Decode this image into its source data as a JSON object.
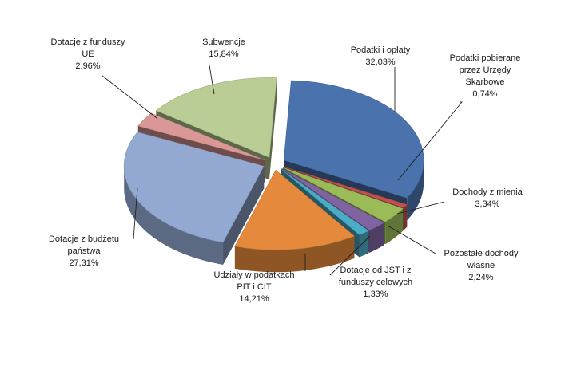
{
  "chart_data": {
    "type": "pie",
    "title": "",
    "style": "3d-exploded",
    "slices": [
      {
        "label_lines": [
          "Podatki i opłaty"
        ],
        "value_text": "32,03%",
        "value": 32.03,
        "color": "#4a72ad"
      },
      {
        "label_lines": [
          "Podatki  pobierane",
          "przez Urzędy",
          "Skarbowe"
        ],
        "value_text": "0,74%",
        "value": 0.74,
        "color": "#c0504d"
      },
      {
        "label_lines": [
          "Dochody z mienia"
        ],
        "value_text": "3,34%",
        "value": 3.34,
        "color": "#9bbb59"
      },
      {
        "label_lines": [
          "Pozostałe dochody",
          "własne"
        ],
        "value_text": "2,24%",
        "value": 2.24,
        "color": "#8064a2"
      },
      {
        "label_lines": [
          "Dotacje od JST  i z",
          "funduszy celowych"
        ],
        "value_text": "1,33%",
        "value": 1.33,
        "color": "#4bacc6"
      },
      {
        "label_lines": [
          "Udziały w podatkach",
          "PIT i CIT"
        ],
        "value_text": "14,21%",
        "value": 14.21,
        "color": "#e58a3c"
      },
      {
        "label_lines": [
          "Dotacje z budżetu",
          "państwa"
        ],
        "value_text": "27,31%",
        "value": 27.31,
        "color": "#94a9d2"
      },
      {
        "label_lines": [
          "Dotacje z funduszy",
          "UE"
        ],
        "value_text": "2,96%",
        "value": 2.96,
        "color": "#d99795"
      },
      {
        "label_lines": [
          "Subwencje"
        ],
        "value_text": "15,84%",
        "value": 15.84,
        "color": "#bacd94"
      }
    ]
  }
}
